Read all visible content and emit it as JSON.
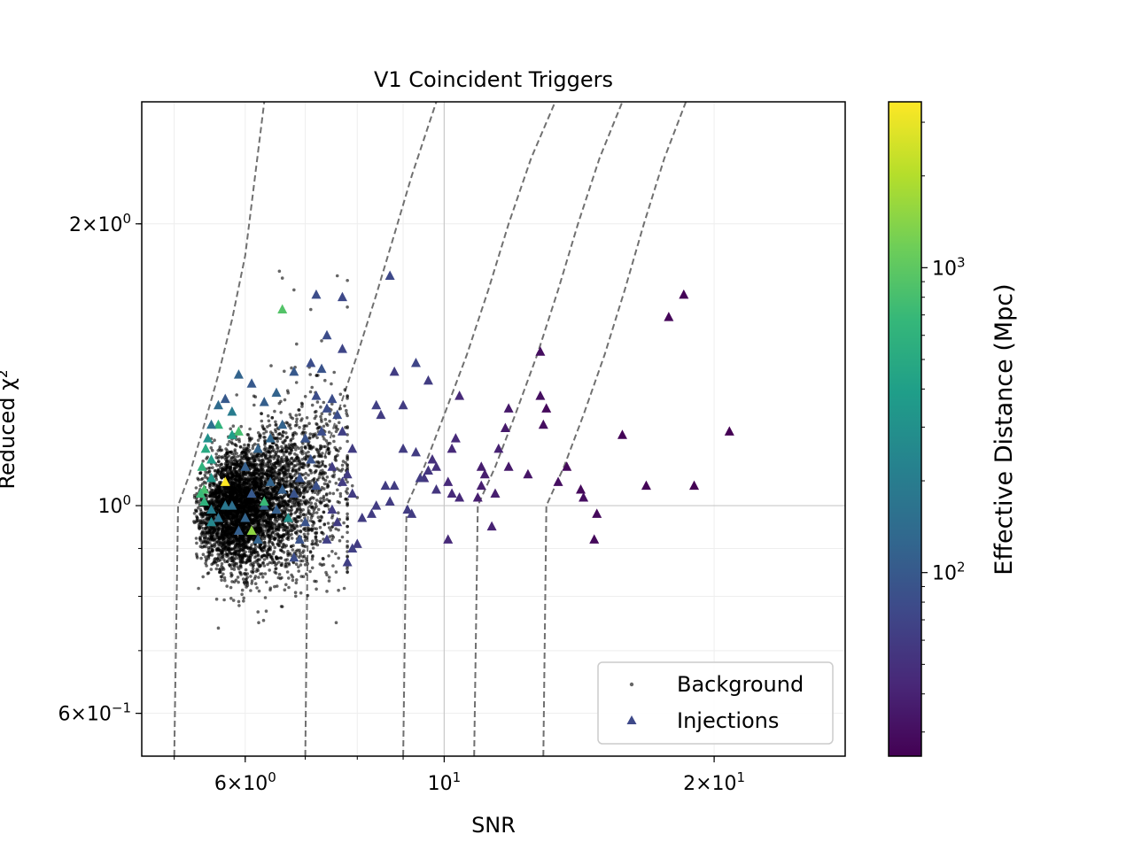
{
  "chart_data": {
    "type": "scatter",
    "title": "V1 Coincident Triggers",
    "xlabel": "SNR",
    "ylabel": "Reduced χ²",
    "xscale": "log",
    "yscale": "log",
    "xlim": [
      4.6,
      28
    ],
    "ylim": [
      0.54,
      2.7
    ],
    "grid": true,
    "legend_position": "lower-right",
    "x_ticks": [
      {
        "value": 6,
        "mant": "6",
        "exp": "0"
      },
      {
        "value": 10,
        "mant": "",
        "exp": "1"
      },
      {
        "value": 20,
        "mant": "2",
        "exp": "1"
      }
    ],
    "y_ticks": [
      {
        "value": 0.6,
        "mant": "6",
        "exp": "−1"
      },
      {
        "value": 1,
        "mant": "",
        "exp": "0"
      },
      {
        "value": 2,
        "mant": "2",
        "exp": "0"
      }
    ],
    "colorbar": {
      "label": "Effective Distance (Mpc)",
      "scale": "log",
      "range": [
        25,
        3500
      ],
      "ticks": [
        {
          "value": 100,
          "mant": "",
          "exp": "2"
        },
        {
          "value": 1000,
          "mant": "",
          "exp": "3"
        }
      ],
      "colormap": [
        "#440154",
        "#482878",
        "#3e4989",
        "#31688e",
        "#26828e",
        "#1f9e89",
        "#35b779",
        "#6ece58",
        "#b5de2b",
        "#fde725"
      ]
    },
    "threshold_curves": [
      {
        "snr_cut": 5.0,
        "x": [
          5.0,
          5.05,
          5.2,
          5.4,
          5.6,
          5.8,
          6.0,
          6.3
        ],
        "y": [
          0.54,
          1.0,
          1.08,
          1.22,
          1.38,
          1.58,
          1.85,
          2.7
        ]
      },
      {
        "snr_cut": 7.0,
        "x": [
          7.0,
          7.05,
          7.3,
          7.6,
          8.0,
          8.4,
          8.8,
          9.2,
          9.8
        ],
        "y": [
          0.54,
          1.0,
          1.1,
          1.25,
          1.45,
          1.68,
          1.95,
          2.25,
          2.7
        ]
      },
      {
        "snr_cut": 9.0,
        "x": [
          9.0,
          9.08,
          9.5,
          10.0,
          10.6,
          11.2,
          11.8,
          12.5,
          13.3
        ],
        "y": [
          0.54,
          1.0,
          1.1,
          1.25,
          1.45,
          1.7,
          2.0,
          2.35,
          2.7
        ]
      },
      {
        "snr_cut": 10.8,
        "x": [
          10.8,
          10.9,
          11.4,
          12.0,
          12.7,
          13.4,
          14.1,
          14.9,
          15.8
        ],
        "y": [
          0.54,
          1.0,
          1.1,
          1.25,
          1.45,
          1.7,
          2.0,
          2.35,
          2.7
        ]
      },
      {
        "snr_cut": 12.9,
        "x": [
          12.9,
          13.0,
          13.6,
          14.3,
          15.1,
          15.9,
          16.7,
          17.6,
          18.6
        ],
        "y": [
          0.54,
          1.0,
          1.1,
          1.25,
          1.45,
          1.7,
          2.0,
          2.35,
          2.7
        ]
      }
    ],
    "series": [
      {
        "name": "Background",
        "marker": "dot",
        "color": "#000000",
        "count_shown": 5000
      },
      {
        "name": "Injections",
        "marker": "triangle",
        "color": "#3e4989"
      }
    ],
    "background_cloud": {
      "x_range": [
        5.25,
        7.6
      ],
      "y_center": 1.0,
      "outliers": [
        {
          "x": 6.55,
          "y": 1.78
        },
        {
          "x": 6.6,
          "y": 1.75
        },
        {
          "x": 6.8,
          "y": 1.7
        },
        {
          "x": 7.1,
          "y": 1.62
        },
        {
          "x": 7.6,
          "y": 1.76
        },
        {
          "x": 7.8,
          "y": 1.74
        },
        {
          "x": 7.3,
          "y": 1.5
        },
        {
          "x": 7.4,
          "y": 0.81
        },
        {
          "x": 7.5,
          "y": 0.92
        },
        {
          "x": 7.8,
          "y": 0.95
        },
        {
          "x": 7.9,
          "y": 1.05
        },
        {
          "x": 8.0,
          "y": 1.02
        },
        {
          "x": 5.6,
          "y": 0.74
        },
        {
          "x": 6.2,
          "y": 0.77
        },
        {
          "x": 6.6,
          "y": 0.78
        },
        {
          "x": 7.2,
          "y": 0.83
        }
      ]
    },
    "injections": [
      {
        "x": 18.5,
        "y": 1.68,
        "d": 26
      },
      {
        "x": 17.8,
        "y": 1.59,
        "d": 27
      },
      {
        "x": 20.8,
        "y": 1.2,
        "d": 25
      },
      {
        "x": 15.8,
        "y": 1.19,
        "d": 26
      },
      {
        "x": 19.0,
        "y": 1.05,
        "d": 25
      },
      {
        "x": 16.8,
        "y": 1.05,
        "d": 26
      },
      {
        "x": 12.8,
        "y": 1.46,
        "d": 30
      },
      {
        "x": 12.8,
        "y": 1.31,
        "d": 30
      },
      {
        "x": 13.0,
        "y": 1.27,
        "d": 28
      },
      {
        "x": 12.9,
        "y": 1.22,
        "d": 30
      },
      {
        "x": 13.7,
        "y": 1.1,
        "d": 28
      },
      {
        "x": 13.4,
        "y": 1.06,
        "d": 30
      },
      {
        "x": 14.2,
        "y": 1.04,
        "d": 28
      },
      {
        "x": 14.3,
        "y": 1.02,
        "d": 30
      },
      {
        "x": 14.8,
        "y": 0.98,
        "d": 28
      },
      {
        "x": 14.7,
        "y": 0.92,
        "d": 28
      },
      {
        "x": 11.8,
        "y": 1.27,
        "d": 35
      },
      {
        "x": 11.7,
        "y": 1.21,
        "d": 35
      },
      {
        "x": 11.8,
        "y": 1.1,
        "d": 35
      },
      {
        "x": 12.4,
        "y": 1.08,
        "d": 33
      },
      {
        "x": 11.5,
        "y": 1.15,
        "d": 40
      },
      {
        "x": 11.3,
        "y": 0.95,
        "d": 40
      },
      {
        "x": 11.1,
        "y": 1.08,
        "d": 38
      },
      {
        "x": 11.0,
        "y": 1.05,
        "d": 38
      },
      {
        "x": 10.9,
        "y": 1.02,
        "d": 38
      },
      {
        "x": 11.4,
        "y": 1.03,
        "d": 38
      },
      {
        "x": 11.0,
        "y": 1.1,
        "d": 38
      },
      {
        "x": 10.4,
        "y": 1.31,
        "d": 45
      },
      {
        "x": 10.3,
        "y": 1.18,
        "d": 45
      },
      {
        "x": 10.2,
        "y": 1.15,
        "d": 45
      },
      {
        "x": 10.1,
        "y": 1.06,
        "d": 45
      },
      {
        "x": 10.2,
        "y": 1.03,
        "d": 45
      },
      {
        "x": 10.4,
        "y": 1.02,
        "d": 45
      },
      {
        "x": 10.1,
        "y": 0.92,
        "d": 45
      },
      {
        "x": 9.8,
        "y": 1.1,
        "d": 50
      },
      {
        "x": 9.6,
        "y": 1.09,
        "d": 55
      },
      {
        "x": 9.5,
        "y": 1.07,
        "d": 55
      },
      {
        "x": 9.7,
        "y": 1.12,
        "d": 50
      },
      {
        "x": 9.8,
        "y": 1.04,
        "d": 55
      },
      {
        "x": 9.3,
        "y": 1.14,
        "d": 60
      },
      {
        "x": 9.4,
        "y": 1.07,
        "d": 60
      },
      {
        "x": 9.2,
        "y": 0.98,
        "d": 60
      },
      {
        "x": 9.1,
        "y": 0.99,
        "d": 60
      },
      {
        "x": 9.6,
        "y": 1.36,
        "d": 60
      },
      {
        "x": 9.3,
        "y": 1.42,
        "d": 70
      },
      {
        "x": 9.0,
        "y": 1.28,
        "d": 60
      },
      {
        "x": 9.0,
        "y": 1.15,
        "d": 60
      },
      {
        "x": 8.8,
        "y": 1.39,
        "d": 60
      },
      {
        "x": 8.7,
        "y": 1.76,
        "d": 75
      },
      {
        "x": 8.4,
        "y": 1.28,
        "d": 65
      },
      {
        "x": 8.5,
        "y": 1.25,
        "d": 60
      },
      {
        "x": 8.6,
        "y": 1.05,
        "d": 60
      },
      {
        "x": 8.8,
        "y": 1.05,
        "d": 60
      },
      {
        "x": 8.7,
        "y": 1.01,
        "d": 60
      },
      {
        "x": 8.4,
        "y": 1.0,
        "d": 60
      },
      {
        "x": 8.3,
        "y": 0.98,
        "d": 60
      },
      {
        "x": 8.1,
        "y": 0.97,
        "d": 60
      },
      {
        "x": 8.0,
        "y": 0.91,
        "d": 60
      },
      {
        "x": 7.9,
        "y": 0.9,
        "d": 65
      },
      {
        "x": 7.8,
        "y": 0.87,
        "d": 65
      },
      {
        "x": 7.9,
        "y": 1.15,
        "d": 60
      },
      {
        "x": 7.7,
        "y": 1.2,
        "d": 65
      },
      {
        "x": 7.8,
        "y": 1.08,
        "d": 60
      },
      {
        "x": 7.7,
        "y": 1.06,
        "d": 60
      },
      {
        "x": 7.9,
        "y": 1.03,
        "d": 60
      },
      {
        "x": 7.5,
        "y": 1.1,
        "d": 60
      },
      {
        "x": 7.6,
        "y": 0.96,
        "d": 60
      },
      {
        "x": 7.4,
        "y": 0.92,
        "d": 65
      },
      {
        "x": 7.5,
        "y": 0.99,
        "d": 60
      },
      {
        "x": 7.7,
        "y": 1.67,
        "d": 75
      },
      {
        "x": 7.2,
        "y": 1.68,
        "d": 80
      },
      {
        "x": 7.4,
        "y": 1.52,
        "d": 80
      },
      {
        "x": 7.7,
        "y": 1.47,
        "d": 70
      },
      {
        "x": 7.1,
        "y": 1.42,
        "d": 80
      },
      {
        "x": 7.3,
        "y": 1.4,
        "d": 90
      },
      {
        "x": 7.5,
        "y": 1.3,
        "d": 80
      },
      {
        "x": 7.2,
        "y": 1.31,
        "d": 80
      },
      {
        "x": 7.4,
        "y": 1.27,
        "d": 80
      },
      {
        "x": 7.6,
        "y": 1.25,
        "d": 80
      },
      {
        "x": 7.3,
        "y": 1.2,
        "d": 80
      },
      {
        "x": 7.0,
        "y": 1.18,
        "d": 90
      },
      {
        "x": 7.1,
        "y": 1.12,
        "d": 90
      },
      {
        "x": 6.9,
        "y": 1.07,
        "d": 90
      },
      {
        "x": 7.2,
        "y": 1.05,
        "d": 85
      },
      {
        "x": 6.8,
        "y": 1.03,
        "d": 90
      },
      {
        "x": 7.0,
        "y": 0.96,
        "d": 90
      },
      {
        "x": 6.9,
        "y": 0.92,
        "d": 90
      },
      {
        "x": 6.8,
        "y": 0.88,
        "d": 80
      },
      {
        "x": 6.6,
        "y": 1.62,
        "d": 900
      },
      {
        "x": 6.8,
        "y": 1.39,
        "d": 100
      },
      {
        "x": 6.5,
        "y": 1.32,
        "d": 120
      },
      {
        "x": 6.3,
        "y": 1.29,
        "d": 110
      },
      {
        "x": 6.1,
        "y": 1.35,
        "d": 100
      },
      {
        "x": 5.9,
        "y": 1.38,
        "d": 120
      },
      {
        "x": 5.7,
        "y": 1.3,
        "d": 100
      },
      {
        "x": 5.6,
        "y": 1.28,
        "d": 140
      },
      {
        "x": 6.6,
        "y": 1.22,
        "d": 120
      },
      {
        "x": 6.4,
        "y": 1.18,
        "d": 130
      },
      {
        "x": 6.2,
        "y": 1.15,
        "d": 120
      },
      {
        "x": 6.0,
        "y": 1.1,
        "d": 110
      },
      {
        "x": 6.4,
        "y": 1.06,
        "d": 120
      },
      {
        "x": 6.6,
        "y": 1.04,
        "d": 110
      },
      {
        "x": 6.1,
        "y": 1.03,
        "d": 100
      },
      {
        "x": 6.3,
        "y": 1.0,
        "d": 120
      },
      {
        "x": 6.5,
        "y": 0.99,
        "d": 110
      },
      {
        "x": 6.7,
        "y": 0.97,
        "d": 300
      },
      {
        "x": 6.0,
        "y": 0.97,
        "d": 120
      },
      {
        "x": 5.8,
        "y": 1.0,
        "d": 150
      },
      {
        "x": 5.9,
        "y": 0.94,
        "d": 110
      },
      {
        "x": 6.2,
        "y": 0.92,
        "d": 120
      },
      {
        "x": 5.6,
        "y": 0.97,
        "d": 160
      },
      {
        "x": 5.5,
        "y": 0.99,
        "d": 200
      },
      {
        "x": 5.4,
        "y": 1.04,
        "d": 800
      },
      {
        "x": 5.35,
        "y": 1.03,
        "d": 700
      },
      {
        "x": 5.4,
        "y": 1.01,
        "d": 600
      },
      {
        "x": 5.37,
        "y": 1.1,
        "d": 600
      },
      {
        "x": 5.42,
        "y": 1.15,
        "d": 500
      },
      {
        "x": 5.5,
        "y": 1.12,
        "d": 400
      },
      {
        "x": 5.6,
        "y": 1.22,
        "d": 600
      },
      {
        "x": 5.9,
        "y": 1.2,
        "d": 800
      },
      {
        "x": 5.7,
        "y": 1.06,
        "d": 3500
      },
      {
        "x": 6.3,
        "y": 1.01,
        "d": 700
      },
      {
        "x": 6.1,
        "y": 0.94,
        "d": 1500
      },
      {
        "x": 5.8,
        "y": 1.19,
        "d": 400
      },
      {
        "x": 5.5,
        "y": 1.07,
        "d": 350
      },
      {
        "x": 5.5,
        "y": 0.96,
        "d": 250
      },
      {
        "x": 5.45,
        "y": 1.18,
        "d": 300
      },
      {
        "x": 5.8,
        "y": 1.26,
        "d": 200
      },
      {
        "x": 5.5,
        "y": 1.22,
        "d": 160
      },
      {
        "x": 5.7,
        "y": 1.0,
        "d": 180
      }
    ]
  }
}
